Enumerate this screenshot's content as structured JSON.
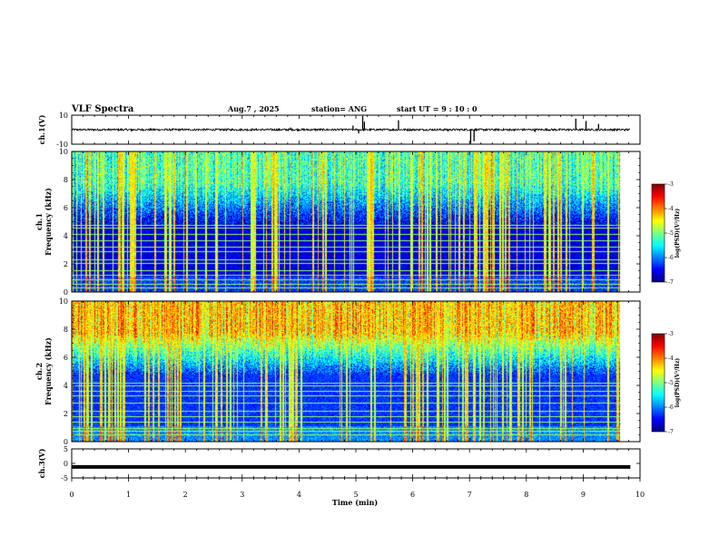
{
  "header": {
    "title": "VLF Spectra",
    "date": "Aug.7  , 2025",
    "station": "station= ANG",
    "start": "start  UT =   9  : 10 : 0"
  },
  "chart_data": [
    {
      "type": "line",
      "name": "ch1-waveform",
      "ylabel": "ch.1(V)",
      "ylim": [
        -10,
        10
      ],
      "y_tick_labels": [
        "10",
        "-10"
      ],
      "baseline": 0,
      "x_range": [
        0,
        9.83
      ],
      "spikes": [
        {
          "t": 1.05,
          "v": -1.2
        },
        {
          "t": 3.85,
          "v": 1.5
        },
        {
          "t": 4.95,
          "v": 2.8
        },
        {
          "t": 5.05,
          "v": -2.6
        },
        {
          "t": 5.12,
          "v": 9.5
        },
        {
          "t": 5.15,
          "v": 5.6
        },
        {
          "t": 5.75,
          "v": 6.5
        },
        {
          "t": 6.62,
          "v": -1.2
        },
        {
          "t": 7.02,
          "v": -9.5
        },
        {
          "t": 7.08,
          "v": -8.0
        },
        {
          "t": 7.7,
          "v": -1.0
        },
        {
          "t": 8.15,
          "v": -1.6
        },
        {
          "t": 8.87,
          "v": 7.6
        },
        {
          "t": 9.05,
          "v": 6.0
        },
        {
          "t": 9.27,
          "v": 4.0
        }
      ]
    },
    {
      "type": "heatmap",
      "name": "ch1-spectrogram",
      "ylabel": "ch.1\nFrequency (kHz)",
      "ylim": [
        0,
        10
      ],
      "y_ticks": [
        0,
        2,
        4,
        6,
        8,
        10
      ],
      "x_range": [
        0,
        9.83
      ],
      "color_scale": {
        "min": -7,
        "max": -3,
        "label": "log(PSD)(V²/Hz)"
      },
      "noise_floor": -6.6,
      "activity": 0.55,
      "lines_khz": [
        0.3,
        0.6,
        0.9,
        1.2,
        1.55,
        2.05,
        2.35,
        2.9,
        3.25,
        3.7,
        4.1,
        4.55,
        4.75
      ]
    },
    {
      "type": "heatmap",
      "name": "ch2-spectrogram",
      "ylabel": "ch.2\nFrequency (kHz)",
      "ylim": [
        0,
        10
      ],
      "y_ticks": [
        0,
        2,
        4,
        6,
        8,
        10
      ],
      "x_range": [
        0,
        9.83
      ],
      "color_scale": {
        "min": -7,
        "max": -3,
        "label": "log(PSD)(V²/Hz)"
      },
      "noise_floor": -6.3,
      "activity": 0.8,
      "lines_khz": [
        0.5,
        0.8,
        1.0,
        1.4,
        1.8,
        2.2,
        2.8,
        3.3,
        3.6,
        4.0,
        4.2
      ]
    },
    {
      "type": "line",
      "name": "ch3-waveform",
      "ylabel": "ch.3(V)",
      "ylim": [
        -5,
        5
      ],
      "y_tick_labels": [
        "5",
        "0",
        "-5"
      ],
      "baseline": -1.2,
      "x_range": [
        0,
        9.83
      ],
      "spikes": []
    }
  ],
  "x_axis": {
    "label": "Time  (min)",
    "min": 0,
    "max": 10,
    "tick_labels": [
      "0",
      "1",
      "2",
      "3",
      "4",
      "5",
      "6",
      "7",
      "8",
      "9",
      "10"
    ]
  },
  "colorbar": {
    "tick_labels": [
      "-3",
      "-4",
      "-5",
      "-6",
      "-7"
    ],
    "label": "log(PSD)(V²/Hz)"
  },
  "colors": {
    "colormap": [
      "#000080",
      "#0000ff",
      "#0080ff",
      "#00ffff",
      "#80ff80",
      "#ffff00",
      "#ff8000",
      "#ff0000",
      "#800000"
    ]
  }
}
